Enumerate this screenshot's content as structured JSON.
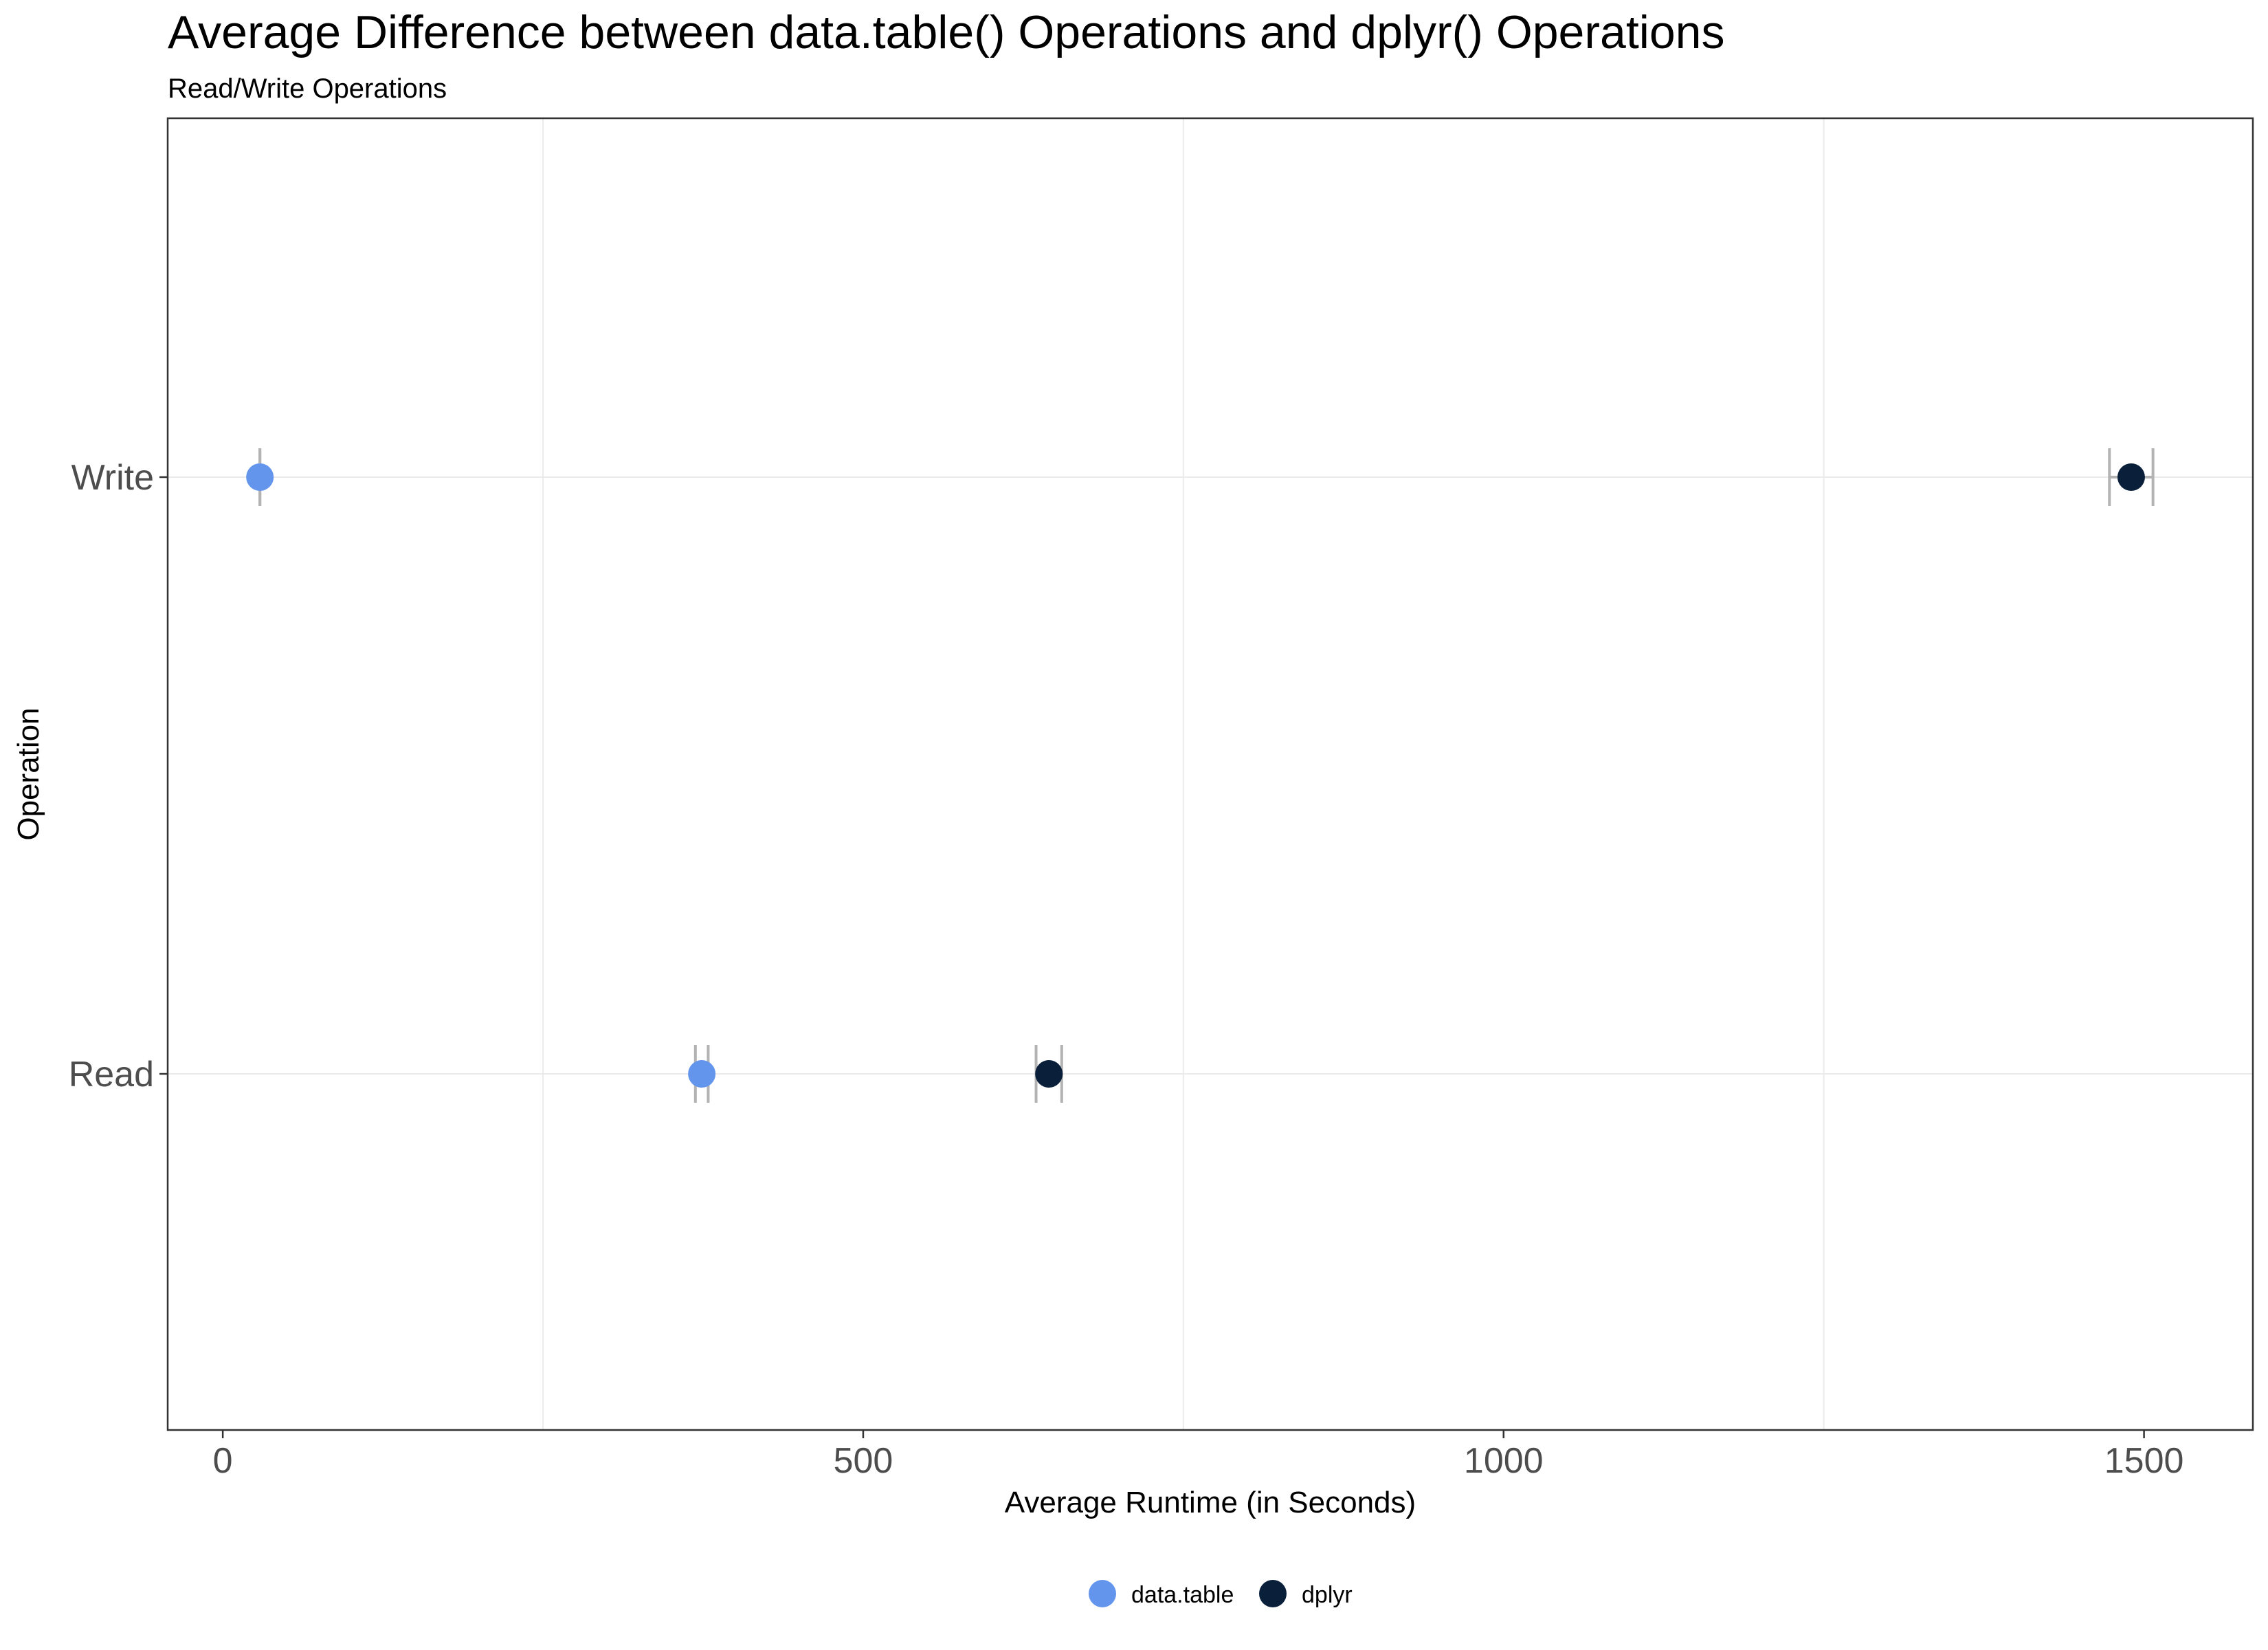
{
  "chart_data": {
    "type": "scatter",
    "title": "Average Difference between data.table() Operations and dplyr() Operations",
    "subtitle": "Read/Write Operations",
    "xlabel": "Average Runtime (in Seconds)",
    "ylabel": "Operation",
    "categories": [
      "Read",
      "Write"
    ],
    "xlim": [
      -43,
      1585
    ],
    "x_ticks": [
      0,
      500,
      1000,
      1500
    ],
    "x_tick_labels": [
      "0",
      "500",
      "1000",
      "1500"
    ],
    "x_minor_gridlines": [
      250,
      750,
      1250
    ],
    "grid": true,
    "legend_position": "bottom",
    "series": [
      {
        "name": "data.table",
        "color": "#6495ED",
        "points": [
          {
            "category": "Write",
            "x": 29,
            "xmin": 29,
            "xmax": 29
          },
          {
            "category": "Read",
            "x": 374,
            "xmin": 369,
            "xmax": 379
          }
        ]
      },
      {
        "name": "dplyr",
        "color": "#0A1F3A",
        "points": [
          {
            "category": "Write",
            "x": 1490,
            "xmin": 1473,
            "xmax": 1507
          },
          {
            "category": "Read",
            "x": 645,
            "xmin": 635,
            "xmax": 655
          }
        ]
      }
    ],
    "errorbar_color": "#B3B3B3"
  }
}
